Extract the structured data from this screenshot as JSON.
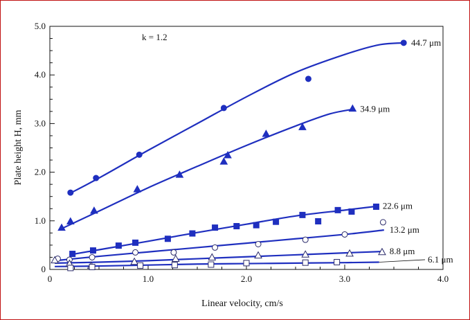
{
  "chart_data": {
    "type": "scatter",
    "xlabel": "Linear velocity, cm/s",
    "ylabel": "Plate height H, mm",
    "annotation": "k = 1.2",
    "xlim": [
      0,
      4.0
    ],
    "ylim": [
      0,
      5.0
    ],
    "x_ticks": [
      0,
      1.0,
      2.0,
      3.0,
      4.0
    ],
    "x_tick_labels": [
      "0",
      "1.0",
      "2.0",
      "3.0",
      "4.0"
    ],
    "y_ticks": [
      0,
      1.0,
      2.0,
      3.0,
      4.0,
      5.0
    ],
    "y_tick_labels": [
      "0",
      "1.0",
      "2.0",
      "3.0",
      "4.0",
      "5.0"
    ],
    "grid": false,
    "line_color": "#1f2fbf",
    "series": [
      {
        "name": "44.7 μm",
        "marker": "filled-circle",
        "points": [
          [
            0.21,
            1.58
          ],
          [
            0.47,
            1.88
          ],
          [
            0.91,
            2.36
          ],
          [
            1.77,
            3.32
          ],
          [
            2.63,
            3.92
          ],
          [
            3.6,
            4.66
          ]
        ],
        "curve": [
          [
            0.19,
            1.55
          ],
          [
            0.5,
            1.88
          ],
          [
            1.0,
            2.45
          ],
          [
            1.5,
            3.0
          ],
          [
            2.0,
            3.55
          ],
          [
            2.5,
            4.05
          ],
          [
            3.0,
            4.42
          ],
          [
            3.35,
            4.62
          ],
          [
            3.62,
            4.66
          ]
        ]
      },
      {
        "name": "34.9 μm",
        "marker": "filled-triangle",
        "points": [
          [
            0.12,
            0.86
          ],
          [
            0.21,
            0.99
          ],
          [
            0.45,
            1.21
          ],
          [
            0.89,
            1.65
          ],
          [
            1.32,
            1.95
          ],
          [
            1.77,
            2.22
          ],
          [
            1.81,
            2.35
          ],
          [
            2.2,
            2.79
          ],
          [
            2.57,
            2.93
          ],
          [
            3.08,
            3.31
          ]
        ],
        "curve": [
          [
            0.1,
            0.82
          ],
          [
            0.5,
            1.2
          ],
          [
            1.0,
            1.68
          ],
          [
            1.5,
            2.12
          ],
          [
            2.0,
            2.55
          ],
          [
            2.5,
            2.95
          ],
          [
            2.85,
            3.2
          ],
          [
            3.1,
            3.3
          ]
        ]
      },
      {
        "name": "22.6 μm",
        "marker": "filled-square",
        "points": [
          [
            0.23,
            0.32
          ],
          [
            0.44,
            0.39
          ],
          [
            0.7,
            0.49
          ],
          [
            0.87,
            0.55
          ],
          [
            1.2,
            0.63
          ],
          [
            1.45,
            0.74
          ],
          [
            1.68,
            0.86
          ],
          [
            1.9,
            0.89
          ],
          [
            2.1,
            0.91
          ],
          [
            2.3,
            0.98
          ],
          [
            2.57,
            1.12
          ],
          [
            2.73,
            0.99
          ],
          [
            2.93,
            1.22
          ],
          [
            3.07,
            1.19
          ],
          [
            3.32,
            1.29
          ]
        ],
        "curve": [
          [
            0.2,
            0.3
          ],
          [
            0.6,
            0.44
          ],
          [
            1.0,
            0.58
          ],
          [
            1.5,
            0.76
          ],
          [
            2.0,
            0.93
          ],
          [
            2.5,
            1.1
          ],
          [
            3.0,
            1.22
          ],
          [
            3.33,
            1.3
          ]
        ]
      },
      {
        "name": "13.2 μm",
        "marker": "open-circle",
        "points": [
          [
            0.08,
            0.22
          ],
          [
            0.2,
            0.2
          ],
          [
            0.43,
            0.25
          ],
          [
            0.87,
            0.35
          ],
          [
            1.26,
            0.35
          ],
          [
            1.68,
            0.45
          ],
          [
            2.12,
            0.52
          ],
          [
            2.6,
            0.61
          ],
          [
            3.0,
            0.72
          ],
          [
            3.39,
            0.97
          ]
        ],
        "curve": [
          [
            0.05,
            0.18
          ],
          [
            0.5,
            0.27
          ],
          [
            1.0,
            0.36
          ],
          [
            1.5,
            0.45
          ],
          [
            2.0,
            0.54
          ],
          [
            2.5,
            0.63
          ],
          [
            3.0,
            0.72
          ],
          [
            3.4,
            0.81
          ]
        ]
      },
      {
        "name": "8.8 μm",
        "marker": "open-triangle",
        "points": [
          [
            0.05,
            0.19
          ],
          [
            0.2,
            0.12
          ],
          [
            0.42,
            0.08
          ],
          [
            0.86,
            0.16
          ],
          [
            1.28,
            0.22
          ],
          [
            1.65,
            0.25
          ],
          [
            2.12,
            0.29
          ],
          [
            2.6,
            0.31
          ],
          [
            3.05,
            0.33
          ],
          [
            3.38,
            0.36
          ]
        ],
        "curve": [
          [
            0.05,
            0.13
          ],
          [
            0.5,
            0.15
          ],
          [
            1.0,
            0.18
          ],
          [
            1.5,
            0.22
          ],
          [
            2.0,
            0.26
          ],
          [
            2.5,
            0.3
          ],
          [
            3.0,
            0.34
          ],
          [
            3.4,
            0.37
          ]
        ]
      },
      {
        "name": "6.1 μm",
        "marker": "open-square",
        "points": [
          [
            0.21,
            0.03
          ],
          [
            0.43,
            0.05
          ],
          [
            0.92,
            0.08
          ],
          [
            1.27,
            0.09
          ],
          [
            1.64,
            0.1
          ],
          [
            2.0,
            0.13
          ],
          [
            2.6,
            0.14
          ],
          [
            2.92,
            0.15
          ]
        ],
        "curve": [
          [
            0.05,
            0.06
          ],
          [
            0.5,
            0.07
          ],
          [
            1.0,
            0.09
          ],
          [
            1.5,
            0.11
          ],
          [
            2.0,
            0.12
          ],
          [
            2.5,
            0.13
          ],
          [
            3.0,
            0.14
          ],
          [
            3.35,
            0.15
          ]
        ]
      }
    ]
  }
}
